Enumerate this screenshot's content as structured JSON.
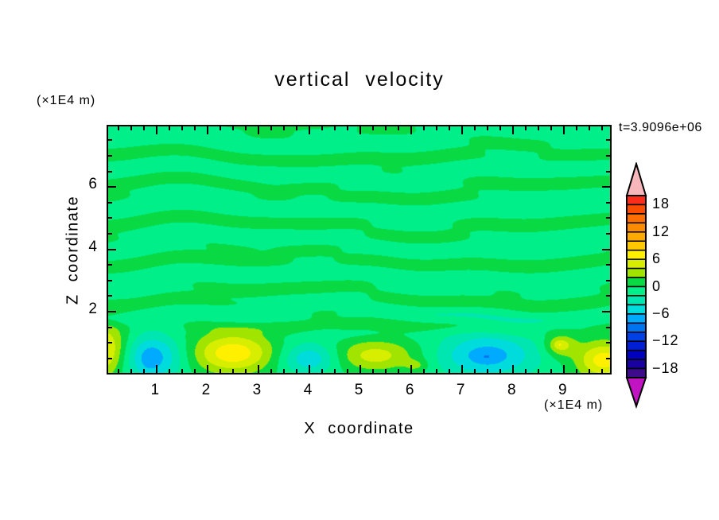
{
  "chart_data": {
    "type": "filled_contour",
    "title": "vertical velocity",
    "time_label": "t=3.9096e+06",
    "xlabel": "X coordinate",
    "zlabel": "Z coordinate",
    "x_unit": "(×1E4 m)",
    "z_unit": "(×1E4 m)",
    "x_range": [
      0.05,
      9.9
    ],
    "z_range": [
      0.04,
      7.94
    ],
    "x_ticks": [
      1,
      2,
      3,
      4,
      5,
      6,
      7,
      8,
      9
    ],
    "x_minor_step": 0.25,
    "z_ticks": [
      2,
      4,
      6
    ],
    "z_minor_step": 0.5,
    "grid": false,
    "field_model": {
      "description": "vertical velocity w(x,z); mostly |w|<2 streaky bands aloft, convective cells of |w| up to ~8 below z=1.5",
      "base": -0.35,
      "streak_fade": [
        0.85,
        1.75
      ],
      "streaks": [
        {
          "amp": 1.05,
          "kz": 5.6,
          "mods": [
            {
              "a": 1.3,
              "kx": 0.8,
              "kz2": 0.6,
              "ph": 0
            },
            {
              "a": 0.6,
              "kx": 2.1,
              "kz2": 0,
              "ph": 1.5
            }
          ]
        },
        {
          "amp": 0.55,
          "kz": 9.3,
          "mods": [
            {
              "a": 1.1,
              "kx": 1.35,
              "kz2": 0,
              "ph": 3.0
            },
            {
              "a": 0.4,
              "kx": 3.3,
              "kz2": 0,
              "ph": 0
            }
          ]
        }
      ],
      "blobs": [
        {
          "x": -0.05,
          "z": 0.75,
          "sx": 0.5,
          "sz": 0.85,
          "amp": 7.3
        },
        {
          "x": 0.9,
          "z": 0.55,
          "sx": 0.6,
          "sz": 0.75,
          "amp": -6.9
        },
        {
          "x": 0.87,
          "z": 0.42,
          "sx": 0.15,
          "sz": 0.28,
          "amp": -0.9
        },
        {
          "x": 2.5,
          "z": 0.68,
          "sx": 0.8,
          "sz": 0.65,
          "amp": 7.7
        },
        {
          "x": 4.0,
          "z": 0.5,
          "sx": 0.55,
          "sz": 0.5,
          "amp": -5.4
        },
        {
          "x": 5.3,
          "z": 0.6,
          "sx": 0.8,
          "sz": 0.5,
          "amp": 5.2
        },
        {
          "x": 6.1,
          "z": 0.28,
          "sx": 0.22,
          "sz": 0.2,
          "amp": 2.4
        },
        {
          "x": 7.5,
          "z": 0.6,
          "sx": 0.95,
          "sz": 0.7,
          "amp": -6.6
        },
        {
          "x": 7.47,
          "z": 0.55,
          "sx": 0.2,
          "sz": 0.16,
          "amp": -1.2
        },
        {
          "x": 8.93,
          "z": 0.92,
          "sx": 0.3,
          "sz": 0.35,
          "amp": 5.0
        },
        {
          "x": 8.9,
          "z": 0.95,
          "sx": 0.11,
          "sz": 0.12,
          "amp": 1.8
        },
        {
          "x": 9.78,
          "z": 0.45,
          "sx": 0.55,
          "sz": 0.6,
          "amp": 7.4
        }
      ]
    }
  },
  "colorbar": {
    "vmin": -20,
    "vmax": 20,
    "band_step": 2,
    "labels": [
      {
        "v": 18,
        "t": "18"
      },
      {
        "v": 12,
        "t": "12"
      },
      {
        "v": 6,
        "t": "6"
      },
      {
        "v": 0,
        "t": "0"
      },
      {
        "v": -6,
        "t": "−6"
      },
      {
        "v": -12,
        "t": "−12"
      },
      {
        "v": -18,
        "t": "−18"
      }
    ],
    "palette_top_to_bottom": [
      "#fb2c1a",
      "#fc4c00",
      "#ff6e00",
      "#ff8c00",
      "#ffaa00",
      "#ffc800",
      "#fff000",
      "#d8ee00",
      "#a0e400",
      "#09da44",
      "#00ef88",
      "#00e6b0",
      "#00dcdc",
      "#00aaff",
      "#0073f0",
      "#0041e6",
      "#001ed2",
      "#0000be",
      "#1900a0",
      "#3c0c8c"
    ],
    "over_color": "#f7b6ba",
    "under_color": "#c213c2"
  }
}
